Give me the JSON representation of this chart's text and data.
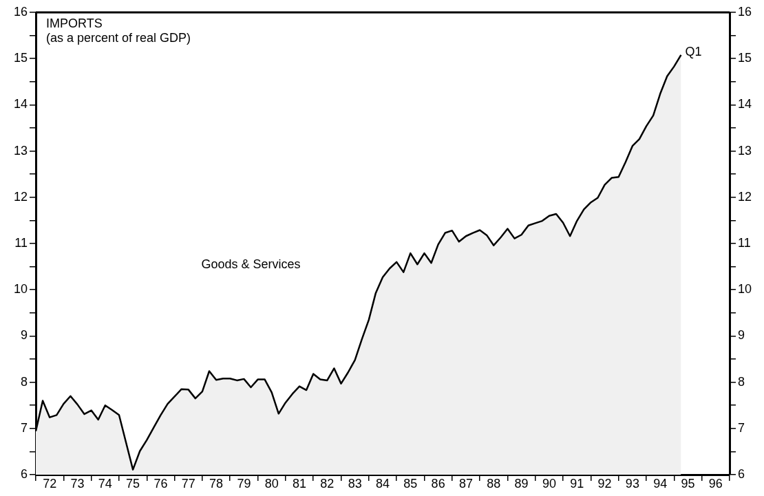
{
  "chart_data": {
    "type": "area",
    "title": "IMPORTS",
    "subtitle": "(as a percent of real GDP)",
    "categories": [
      null,
      null,
      "72",
      null,
      null,
      null,
      "73",
      null,
      null,
      null,
      "74",
      null,
      null,
      null,
      "75",
      null,
      null,
      null,
      "76",
      null,
      null,
      null,
      "77",
      null,
      null,
      null,
      "78",
      null,
      null,
      null,
      "79",
      null,
      null,
      null,
      "80",
      null,
      null,
      null,
      "81",
      null,
      null,
      null,
      "82",
      null,
      null,
      null,
      "83",
      null,
      null,
      null,
      "84",
      null,
      null,
      null,
      "85",
      null,
      null,
      null,
      "86",
      null,
      null,
      null,
      "87",
      null,
      null,
      null,
      "88",
      null,
      null,
      null,
      "89",
      null,
      null,
      null,
      "90",
      null,
      null,
      null,
      "91",
      null,
      null,
      null,
      "92",
      null,
      null,
      null,
      "93",
      null,
      null,
      null,
      "94",
      null,
      null,
      null,
      "95",
      null,
      null,
      null,
      "96",
      null,
      null
    ],
    "series": [
      {
        "name": "Goods & Services",
        "color": "#000000",
        "values": [
          6.94,
          7.6,
          7.24,
          7.29,
          7.53,
          7.7,
          7.52,
          7.31,
          7.39,
          7.19,
          7.5,
          7.4,
          7.29,
          6.7,
          6.11,
          6.51,
          6.75,
          7.02,
          7.29,
          7.53,
          7.69,
          7.85,
          7.84,
          7.65,
          7.8,
          8.24,
          8.05,
          8.08,
          8.08,
          8.04,
          8.07,
          7.89,
          8.06,
          8.06,
          7.78,
          7.32,
          7.56,
          7.75,
          7.91,
          7.83,
          8.18,
          8.06,
          8.04,
          8.3,
          7.97,
          8.21,
          8.48,
          8.93,
          9.35,
          9.93,
          10.27,
          10.46,
          10.6,
          10.38,
          10.79,
          10.55,
          10.79,
          10.58,
          10.98,
          11.23,
          11.28,
          11.04,
          11.16,
          11.23,
          11.29,
          11.18,
          10.96,
          11.13,
          11.32,
          11.11,
          11.19,
          11.39,
          11.44,
          11.49,
          11.6,
          11.64,
          11.45,
          11.16,
          11.49,
          11.74,
          11.89,
          11.99,
          12.27,
          12.42,
          12.44,
          12.76,
          13.11,
          13.26,
          13.54,
          13.77,
          14.24,
          14.62,
          14.83,
          15.08,
          null,
          null,
          null,
          null,
          null,
          null,
          null
        ]
      }
    ],
    "ylim": [
      6,
      16
    ],
    "yticks": [
      6,
      {
        "value": 6.5,
        "label": null
      },
      7,
      {
        "value": 7.5,
        "label": null
      },
      8,
      {
        "value": 8.5,
        "label": null
      },
      9,
      {
        "value": 9.5,
        "label": null
      },
      10,
      {
        "value": 10.5,
        "label": null
      },
      11,
      {
        "value": 11.5,
        "label": null
      },
      12,
      {
        "value": 12.5,
        "label": null
      },
      13,
      {
        "value": 13.5,
        "label": null
      },
      14,
      {
        "value": 14.5,
        "label": null
      },
      15,
      {
        "value": 15.5,
        "label": null
      },
      16
    ],
    "y2lim": [
      6,
      16
    ],
    "y2ticks": [
      6,
      {
        "value": 6.5,
        "label": null
      },
      7,
      {
        "value": 7.5,
        "label": null
      },
      8,
      {
        "value": 8.5,
        "label": null
      },
      9,
      {
        "value": 9.5,
        "label": null
      },
      10,
      {
        "value": 10.5,
        "label": null
      },
      11,
      {
        "value": 11.5,
        "label": null
      },
      12,
      {
        "value": 12.5,
        "label": null
      },
      13,
      {
        "value": 13.5,
        "label": null
      },
      14,
      {
        "value": 14.5,
        "label": null
      },
      15,
      {
        "value": 15.5,
        "label": null
      },
      16
    ],
    "annotations": [
      "Q1"
    ],
    "grid": false,
    "legend": false,
    "marker": "none",
    "line_style": "solid"
  }
}
